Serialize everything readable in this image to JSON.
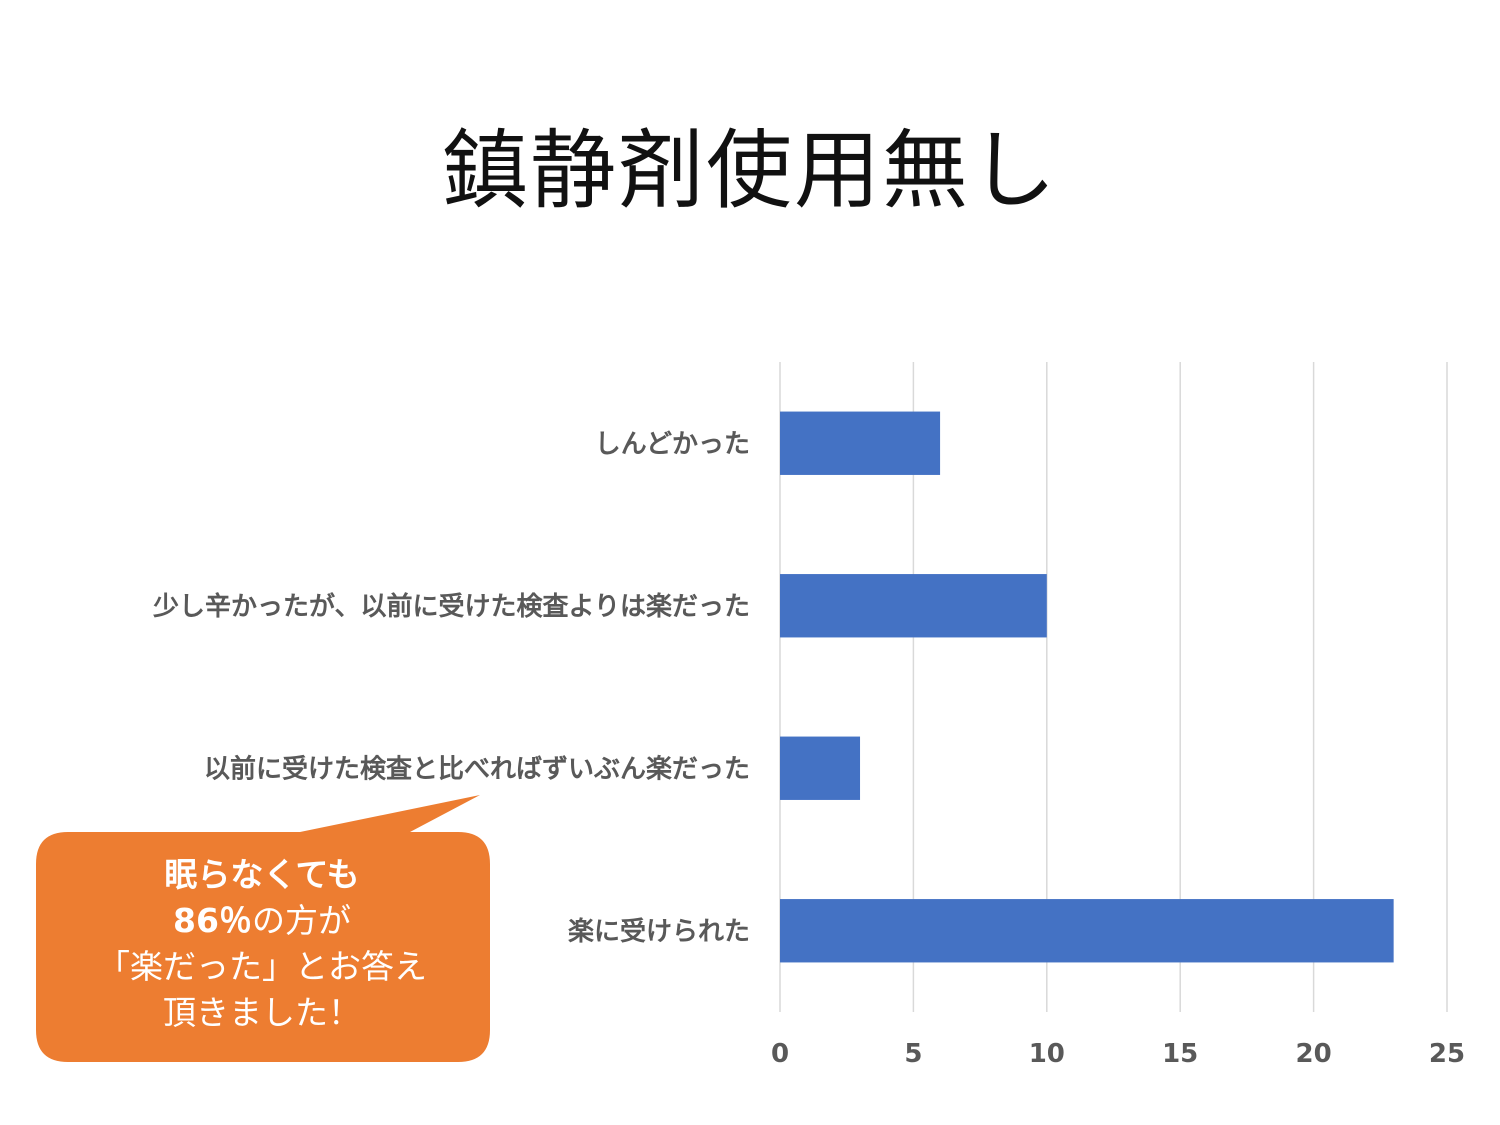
{
  "title": "鎮静剤使用無し",
  "chart_data": {
    "type": "bar",
    "orientation": "horizontal",
    "categories": [
      "しんどかった",
      "少し辛かったが、以前に受けた検査よりは楽だった",
      "以前に受けた検査と比べればずいぶん楽だった",
      "楽に受けられた"
    ],
    "values": [
      6,
      10,
      3,
      23
    ],
    "xlim": [
      0,
      25
    ],
    "xticks": [
      "0",
      "5",
      "10",
      "15",
      "20",
      "25"
    ],
    "grid": true,
    "bar_color": "#4472C4"
  },
  "callout": {
    "line1": "眠らなくても",
    "line2_bold": "86％",
    "line2_rest": "の方が",
    "line3": "「楽だった」とお答え",
    "line4": "頂きました！",
    "color": "#ED7D31"
  }
}
